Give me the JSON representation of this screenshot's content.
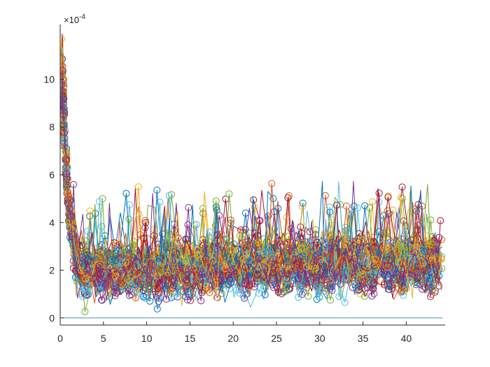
{
  "chart_data": {
    "type": "line",
    "title": "",
    "xlabel": "",
    "ylabel": "",
    "xlim": [
      0,
      44.5
    ],
    "ylim": [
      -0.3,
      12.3
    ],
    "y_exponent_label": "×10",
    "y_exponent_power": "-4",
    "xticks": [
      "0",
      "5",
      "10",
      "15",
      "20",
      "25",
      "30",
      "35",
      "40"
    ],
    "yticks": [
      "0",
      "2",
      "4",
      "6",
      "8",
      "10"
    ],
    "grid": false,
    "legend": "none",
    "colors": [
      "#0072BD",
      "#D95319",
      "#EDB120",
      "#7E2F8E",
      "#77AC30",
      "#4DBEEE",
      "#A2142F"
    ],
    "series_count": 60,
    "samples_per_series": 90,
    "pattern": "values peak near x≈0.2 (about 6–12 ×10^-4), decay by x≈2 to a noisy band of about 1–4 ×10^-4 with occasional spikes up to about 5.2 ×10^-4",
    "representative_values": {
      "x": [
        0,
        0.25,
        0.5,
        1,
        2,
        5,
        10,
        15,
        20,
        25,
        30,
        35,
        40,
        44
      ],
      "y_peak": [
        10.5,
        11.8,
        8.5,
        5.0,
        3.2,
        3.0,
        3.2,
        5.2,
        3.6,
        4.2,
        4.0,
        4.6,
        4.6,
        4.0
      ],
      "y_median": [
        6.0,
        8.0,
        6.0,
        3.5,
        2.0,
        2.0,
        2.0,
        2.1,
        2.2,
        2.2,
        2.3,
        2.3,
        2.3,
        2.3
      ],
      "y_floor": [
        1.0,
        1.2,
        0.7,
        0.3,
        0.2,
        0.1,
        0.1,
        0.1,
        0.1,
        0.1,
        0.1,
        0.1,
        0.1,
        0.1
      ]
    },
    "flat_series": [
      {
        "color": "#D95319",
        "y": 0
      },
      {
        "color": "#4DBEEE",
        "y": 0
      }
    ]
  }
}
